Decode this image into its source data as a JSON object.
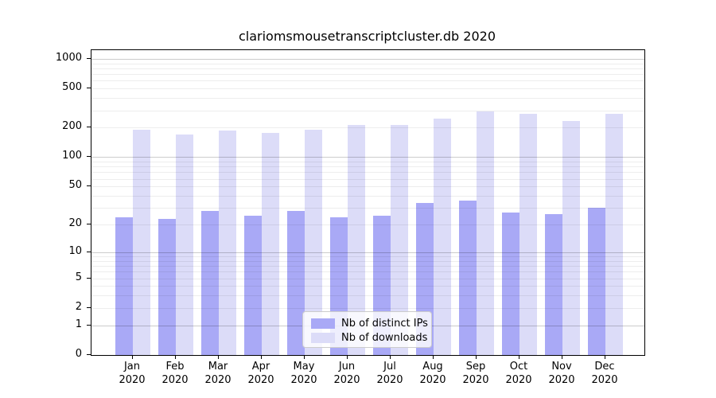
{
  "chart_data": {
    "type": "bar",
    "title": "clariomsmousetranscriptcluster.db 2020",
    "categories": [
      "Jan 2020",
      "Feb 2020",
      "Mar 2020",
      "Apr 2020",
      "May 2020",
      "Jun 2020",
      "Jul 2020",
      "Aug 2020",
      "Sep 2020",
      "Oct 2020",
      "Nov 2020",
      "Dec 2020"
    ],
    "series": [
      {
        "name": "Nb of distinct IPs",
        "color": "#a9a9f6",
        "values": [
          24,
          23,
          28,
          25,
          28,
          24,
          25,
          34,
          36,
          27,
          26,
          30
        ]
      },
      {
        "name": "Nb of downloads",
        "color": "#dcdcf8",
        "values": [
          190,
          170,
          187,
          178,
          190,
          213,
          215,
          247,
          290,
          276,
          235,
          277
        ]
      }
    ],
    "y_axis": {
      "scale": "log10(1+x)",
      "tick_values": [
        0,
        1,
        2,
        5,
        10,
        20,
        50,
        100,
        200,
        500,
        1000
      ],
      "tick_labels": [
        "0",
        "1",
        "2",
        "5",
        "10",
        "20",
        "50",
        "100",
        "200",
        "500",
        "1000"
      ],
      "ylim": [
        0,
        1190
      ]
    },
    "grid": "horizontal, minor log subdivisions",
    "legend_position": "lower center inside plot"
  }
}
